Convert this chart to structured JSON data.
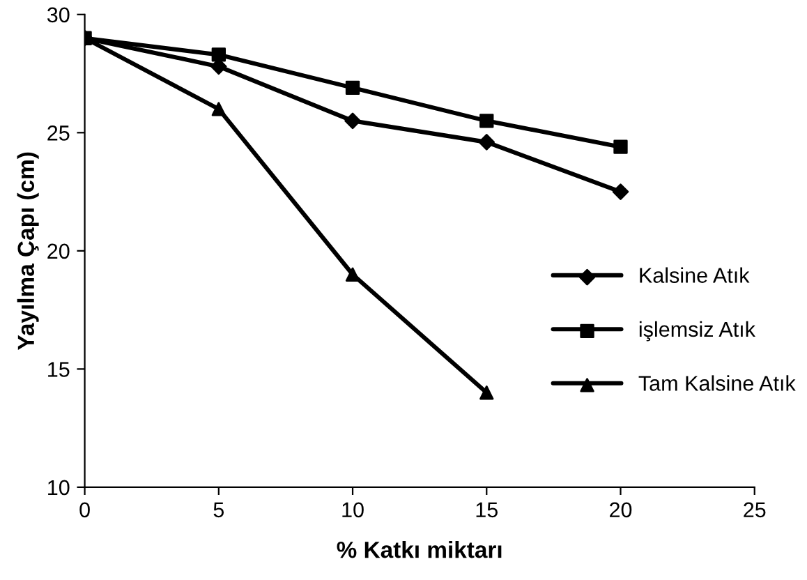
{
  "chart_data": {
    "type": "line",
    "xlabel": "% Katkı miktarı",
    "ylabel": "Yayılma Çapı (cm)",
    "xlim": [
      0,
      25
    ],
    "xticks": [
      0,
      5,
      10,
      15,
      20,
      25
    ],
    "ylim": [
      10,
      30
    ],
    "yticks": [
      10,
      15,
      20,
      25,
      30
    ],
    "grid": false,
    "legend": "right",
    "line_style": "solid",
    "series": [
      {
        "name": "Kalsine Atık",
        "color": "#000000",
        "marker": "diamond",
        "x": [
          0,
          5,
          10,
          15,
          20
        ],
        "values": [
          29,
          27.8,
          25.5,
          24.6,
          22.5
        ]
      },
      {
        "name": "işlemsiz Atık",
        "color": "#000000",
        "marker": "square",
        "x": [
          0,
          5,
          10,
          15,
          20
        ],
        "values": [
          29,
          28.3,
          26.9,
          25.5,
          24.4
        ]
      },
      {
        "name": "Tam Kalsine Atık",
        "color": "#000000",
        "marker": "triangle",
        "x": [
          0,
          5,
          10,
          15
        ],
        "values": [
          29,
          26,
          19,
          14
        ]
      }
    ]
  }
}
